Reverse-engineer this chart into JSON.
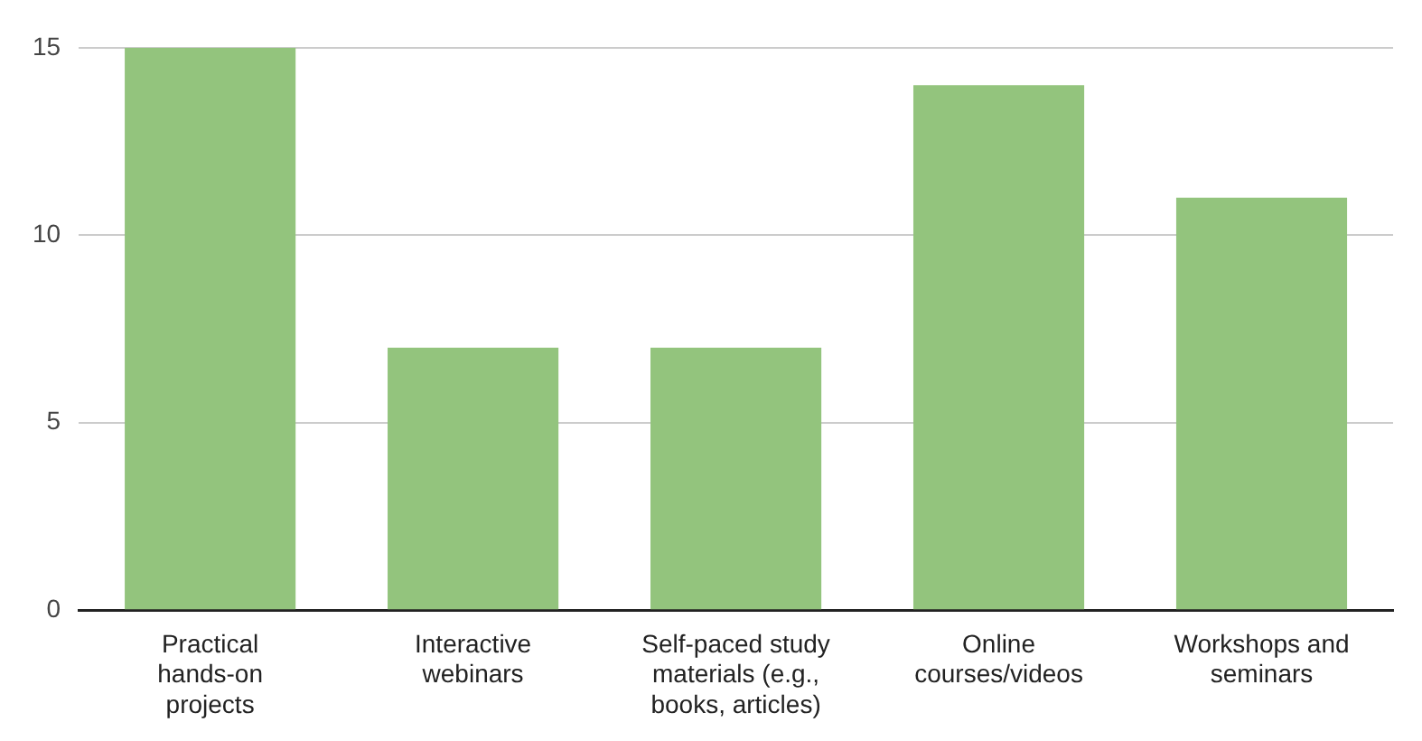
{
  "chart_data": {
    "type": "bar",
    "categories": [
      "Practical hands-on projects",
      "Interactive webinars",
      "Self-paced study materials (e.g., books, articles)",
      "Online courses/videos",
      "Workshops and seminars"
    ],
    "values": [
      15,
      7,
      7,
      14,
      11
    ],
    "color": "#93c47d",
    "ylim": [
      0,
      15
    ],
    "yticks": [
      0,
      5,
      10,
      15
    ],
    "grid": "y"
  }
}
